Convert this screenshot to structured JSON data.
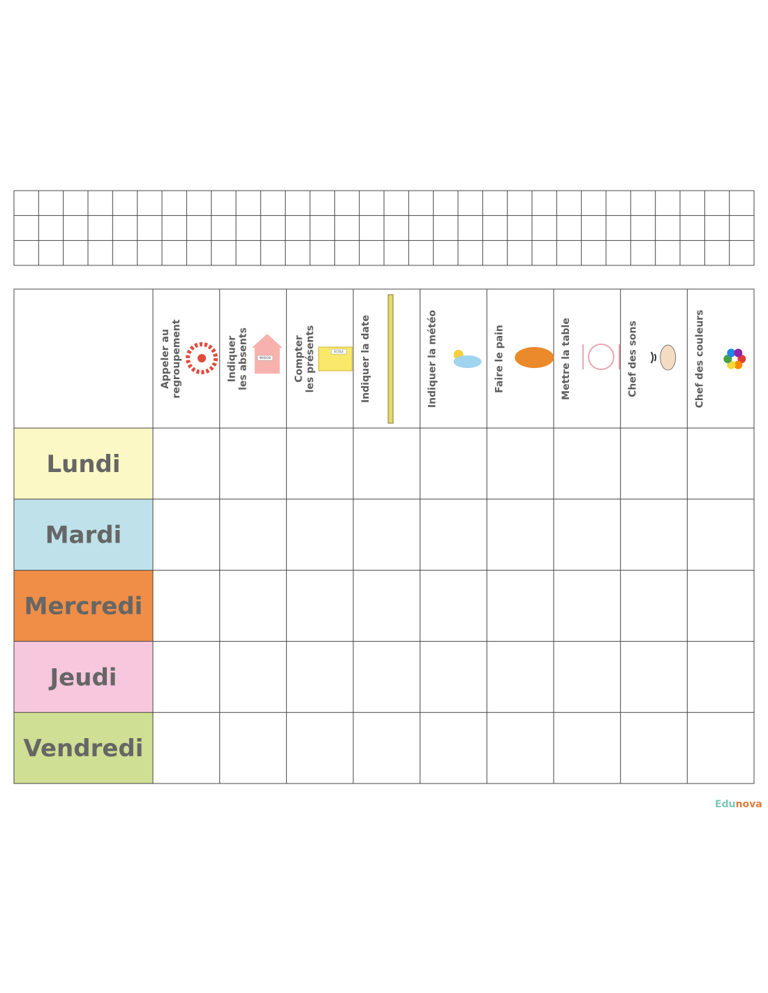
{
  "tasks": [
    [
      "Appeler au",
      "regroupement"
    ],
    [
      "Indiquer",
      "les absents"
    ],
    [
      "Compter",
      "les présents"
    ],
    [
      "Indiquer la date"
    ],
    [
      "Indiquer la météo"
    ],
    [
      "Faire le pain"
    ],
    [
      "Mettre la table"
    ],
    [
      "Chef des sons"
    ],
    [
      "Chef des couleurs"
    ]
  ],
  "days": [
    "Lundi",
    "Mardi",
    "Mercredi",
    "Jeudi",
    "Vendredi"
  ],
  "icon_labels": {
    "house": "MAISON",
    "school": "ECOLE"
  },
  "logo": {
    "part1": "Edu",
    "part2": "nova"
  }
}
